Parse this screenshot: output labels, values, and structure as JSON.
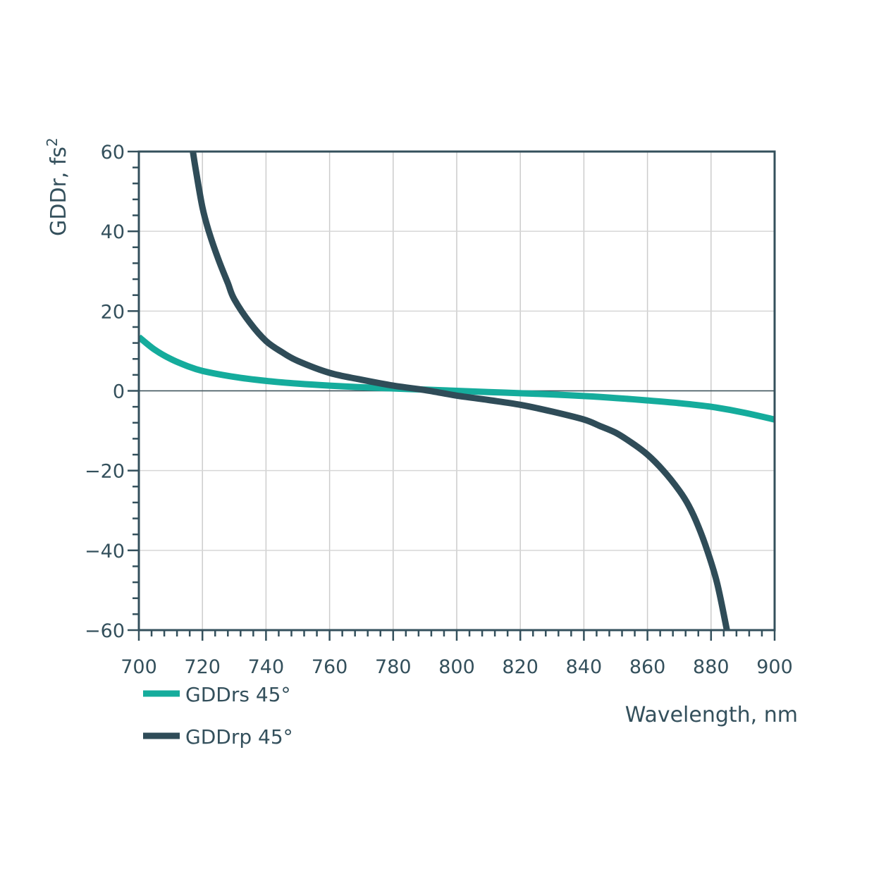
{
  "chart_data": {
    "type": "line",
    "title": "",
    "xlabel": "Wavelength, nm",
    "ylabel": "GDDr, fs²",
    "ylabel_base": "GDDr, fs",
    "ylabel_sup": "2",
    "xlim": [
      700,
      900
    ],
    "ylim": [
      -60,
      60
    ],
    "xticks": [
      700,
      720,
      740,
      760,
      780,
      800,
      820,
      840,
      860,
      880,
      900
    ],
    "yticks": [
      60,
      40,
      20,
      0,
      -20,
      -40,
      -60
    ],
    "ytick_labels": [
      "60",
      "40",
      "20",
      "0",
      "−20",
      "−40",
      "−60"
    ],
    "grid": true,
    "legend_position": "below-left",
    "series": [
      {
        "name": "GDDrs 45°",
        "color": "#15ac9c",
        "x": [
          700,
          705,
          710,
          715,
          720,
          730,
          740,
          750,
          760,
          770,
          780,
          790,
          800,
          810,
          820,
          830,
          840,
          850,
          860,
          870,
          880,
          890,
          900
        ],
        "y": [
          13.5,
          10.3,
          8.0,
          6.3,
          5.0,
          3.5,
          2.5,
          1.8,
          1.3,
          0.9,
          0.6,
          0.3,
          0.0,
          -0.3,
          -0.6,
          -0.9,
          -1.3,
          -1.8,
          -2.4,
          -3.1,
          -4.0,
          -5.4,
          -7.2
        ]
      },
      {
        "name": "GDDrp 45°",
        "color": "#2f4c58",
        "x": [
          717,
          718,
          720,
          722,
          725,
          728,
          730,
          735,
          740,
          745,
          750,
          760,
          770,
          780,
          790,
          800,
          810,
          820,
          830,
          840,
          845,
          850,
          855,
          860,
          865,
          870,
          873,
          876,
          879,
          882,
          885
        ],
        "y": [
          60,
          55,
          46,
          40,
          33,
          27,
          23,
          17,
          12.5,
          9.7,
          7.5,
          4.5,
          2.8,
          1.3,
          0.2,
          -1.2,
          -2.3,
          -3.5,
          -5.2,
          -7.2,
          -8.8,
          -10.5,
          -13.0,
          -16.0,
          -20.0,
          -25.0,
          -28.8,
          -34.0,
          -40.5,
          -48.5,
          -60
        ]
      }
    ]
  }
}
